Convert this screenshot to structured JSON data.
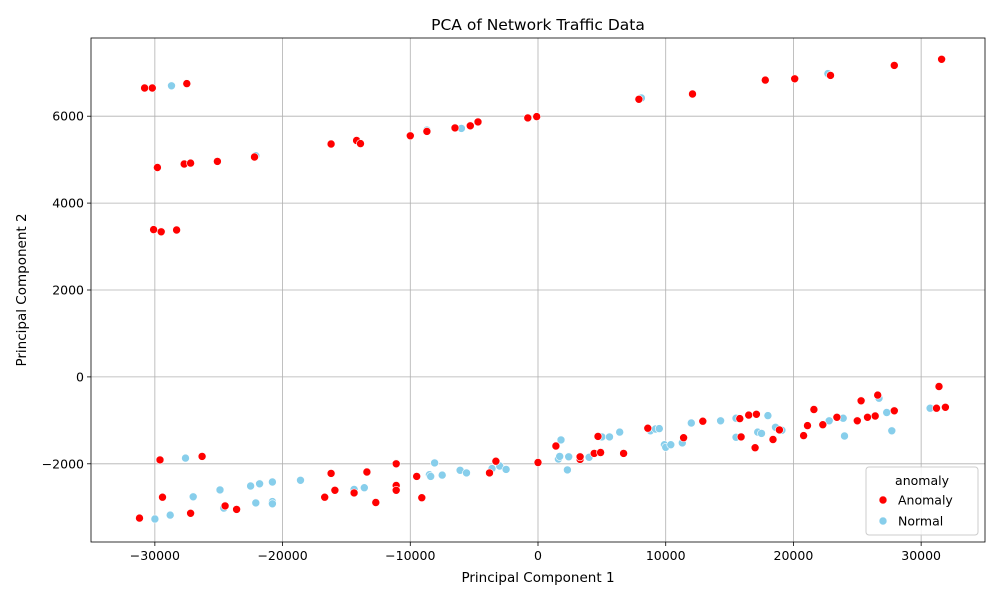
{
  "chart_data": {
    "type": "scatter",
    "title": "PCA of Network Traffic Data",
    "xlabel": "Principal Component 1",
    "ylabel": "Principal Component 2",
    "xlim": [
      -35000,
      35000
    ],
    "ylim": [
      -3800,
      7800
    ],
    "xticks": [
      -30000,
      -20000,
      -10000,
      0,
      10000,
      20000,
      30000
    ],
    "xtick_labels": [
      "−30000",
      "−20000",
      "−10000",
      "0",
      "10000",
      "20000",
      "30000"
    ],
    "yticks": [
      -2000,
      0,
      2000,
      4000,
      6000
    ],
    "ytick_labels": [
      "−2000",
      "0",
      "2000",
      "4000",
      "6000"
    ],
    "grid": true,
    "legend": {
      "title": "anomaly",
      "position": "lower-right"
    },
    "series": [
      {
        "name": "Anomaly",
        "color": "#ff0000",
        "points": [
          [
            -30800,
            6650
          ],
          [
            -30200,
            6650
          ],
          [
            -27500,
            6750
          ],
          [
            -29800,
            4820
          ],
          [
            -27700,
            4900
          ],
          [
            -27200,
            4920
          ],
          [
            -25100,
            4960
          ],
          [
            -22200,
            5060
          ],
          [
            -30100,
            3390
          ],
          [
            -29500,
            3340
          ],
          [
            -28300,
            3380
          ],
          [
            -16200,
            5360
          ],
          [
            -14200,
            5440
          ],
          [
            -13900,
            5370
          ],
          [
            -10000,
            5550
          ],
          [
            -8700,
            5650
          ],
          [
            -6500,
            5730
          ],
          [
            -5300,
            5780
          ],
          [
            -4700,
            5870
          ],
          [
            -800,
            5960
          ],
          [
            -100,
            5990
          ],
          [
            7900,
            6390
          ],
          [
            12100,
            6510
          ],
          [
            17800,
            6830
          ],
          [
            20100,
            6860
          ],
          [
            22900,
            6940
          ],
          [
            27900,
            7170
          ],
          [
            31600,
            7310
          ],
          [
            -31200,
            -3250
          ],
          [
            -29600,
            -1910
          ],
          [
            -29400,
            -2770
          ],
          [
            -27200,
            -3140
          ],
          [
            -26300,
            -1830
          ],
          [
            -24500,
            -2970
          ],
          [
            -23600,
            -3050
          ],
          [
            -16700,
            -2770
          ],
          [
            -16200,
            -2220
          ],
          [
            -15900,
            -2610
          ],
          [
            -14400,
            -2670
          ],
          [
            -13400,
            -2190
          ],
          [
            -12700,
            -2890
          ],
          [
            -11100,
            -2500
          ],
          [
            -11100,
            -2610
          ],
          [
            -11100,
            -2000
          ],
          [
            -9500,
            -2290
          ],
          [
            -9100,
            -2780
          ],
          [
            -3800,
            -2210
          ],
          [
            -3300,
            -1940
          ],
          [
            0,
            -1970
          ],
          [
            1400,
            -1590
          ],
          [
            3300,
            -1900
          ],
          [
            3300,
            -1840
          ],
          [
            4400,
            -1760
          ],
          [
            4900,
            -1740
          ],
          [
            4700,
            -1370
          ],
          [
            6700,
            -1760
          ],
          [
            8600,
            -1180
          ],
          [
            11400,
            -1400
          ],
          [
            12900,
            -1020
          ],
          [
            15800,
            -960
          ],
          [
            15900,
            -1380
          ],
          [
            16500,
            -880
          ],
          [
            17100,
            -860
          ],
          [
            17000,
            -1630
          ],
          [
            18400,
            -1440
          ],
          [
            18900,
            -1220
          ],
          [
            20800,
            -1350
          ],
          [
            21100,
            -1120
          ],
          [
            21600,
            -750
          ],
          [
            22300,
            -1100
          ],
          [
            23400,
            -930
          ],
          [
            25000,
            -1010
          ],
          [
            25300,
            -550
          ],
          [
            25800,
            -930
          ],
          [
            26400,
            -900
          ],
          [
            26600,
            -420
          ],
          [
            27900,
            -780
          ],
          [
            31200,
            -720
          ],
          [
            31400,
            -220
          ],
          [
            31900,
            -700
          ]
        ]
      },
      {
        "name": "Normal",
        "color": "#87ceeb",
        "points": [
          [
            -28700,
            6700
          ],
          [
            -22100,
            5090
          ],
          [
            -8700,
            5680
          ],
          [
            -6000,
            5720
          ],
          [
            8100,
            6420
          ],
          [
            22700,
            6980
          ],
          [
            -30000,
            -3270
          ],
          [
            -28800,
            -3180
          ],
          [
            -27600,
            -1870
          ],
          [
            -27000,
            -2760
          ],
          [
            -24900,
            -2600
          ],
          [
            -24600,
            -3020
          ],
          [
            -22500,
            -2510
          ],
          [
            -22100,
            -2900
          ],
          [
            -21800,
            -2460
          ],
          [
            -20800,
            -2420
          ],
          [
            -20800,
            -2870
          ],
          [
            -20800,
            -2920
          ],
          [
            -18600,
            -2380
          ],
          [
            -14400,
            -2590
          ],
          [
            -13600,
            -2550
          ],
          [
            -8500,
            -2250
          ],
          [
            -8400,
            -2290
          ],
          [
            -8100,
            -1980
          ],
          [
            -7500,
            -2260
          ],
          [
            -6100,
            -2150
          ],
          [
            -5600,
            -2210
          ],
          [
            -3600,
            -2110
          ],
          [
            -3000,
            -2050
          ],
          [
            -2500,
            -2130
          ],
          [
            1600,
            -1890
          ],
          [
            1700,
            -1830
          ],
          [
            1800,
            -1450
          ],
          [
            2300,
            -2140
          ],
          [
            2400,
            -1840
          ],
          [
            4000,
            -1850
          ],
          [
            5000,
            -1380
          ],
          [
            5600,
            -1380
          ],
          [
            6400,
            -1270
          ],
          [
            8800,
            -1240
          ],
          [
            9200,
            -1200
          ],
          [
            9500,
            -1190
          ],
          [
            9900,
            -1560
          ],
          [
            10000,
            -1620
          ],
          [
            10400,
            -1560
          ],
          [
            11300,
            -1520
          ],
          [
            12000,
            -1060
          ],
          [
            14300,
            -1010
          ],
          [
            15500,
            -950
          ],
          [
            15500,
            -1390
          ],
          [
            17200,
            -1270
          ],
          [
            17500,
            -1300
          ],
          [
            18000,
            -890
          ],
          [
            18600,
            -1160
          ],
          [
            19100,
            -1230
          ],
          [
            22800,
            -1010
          ],
          [
            23900,
            -950
          ],
          [
            24000,
            -1360
          ],
          [
            26700,
            -490
          ],
          [
            27300,
            -820
          ],
          [
            27700,
            -1240
          ],
          [
            30700,
            -720
          ]
        ]
      }
    ]
  }
}
